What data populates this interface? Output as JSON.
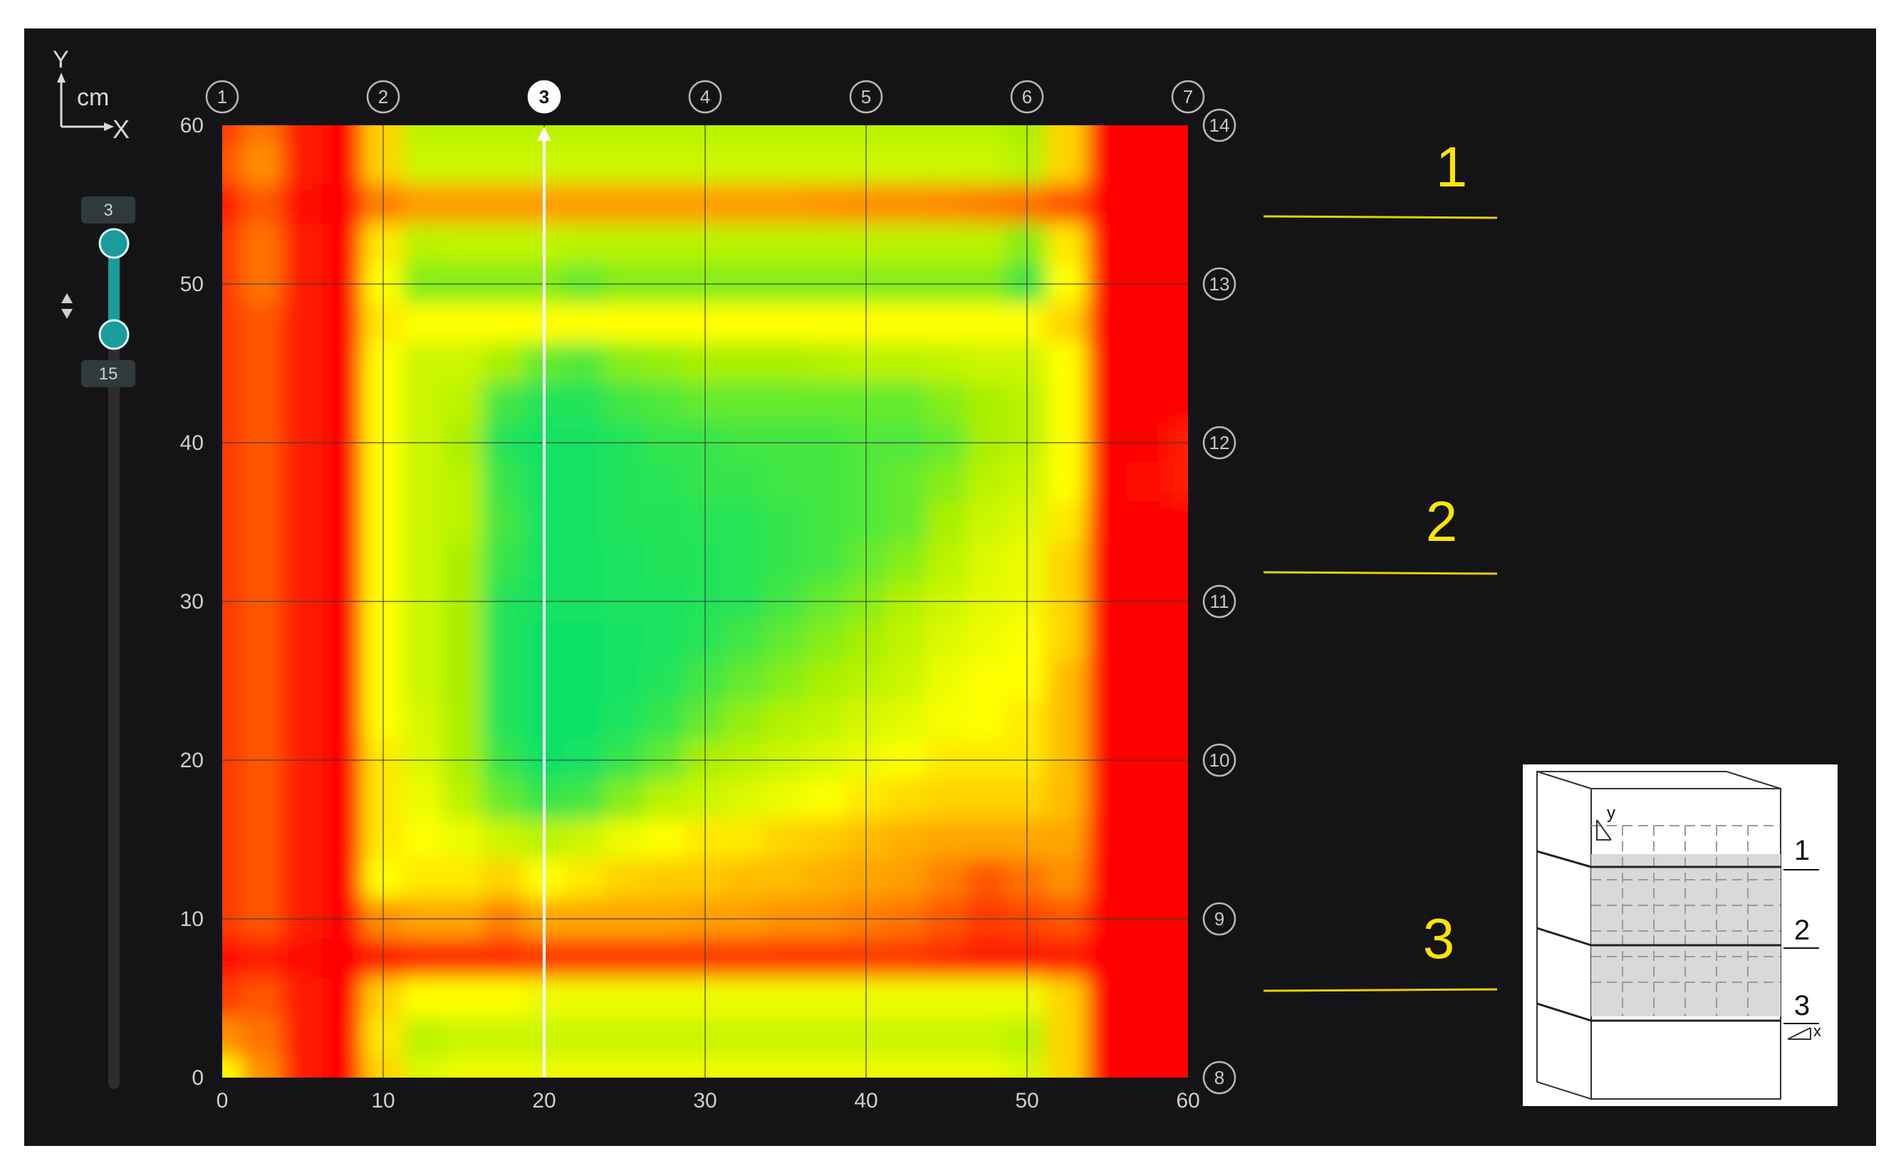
{
  "axis_icon": {
    "y_label": "Y",
    "x_label": "X",
    "unit": "cm"
  },
  "slider": {
    "upper_value": "3",
    "lower_value": "15",
    "icon": "up-down-arrows-icon",
    "accent": "#1a9c9c"
  },
  "selected_column_marker": "3",
  "column_markers": [
    "1",
    "2",
    "3",
    "4",
    "5",
    "6",
    "7"
  ],
  "row_markers": [
    "14",
    "13",
    "12",
    "11",
    "10",
    "9",
    "8"
  ],
  "layer_labels": [
    "1",
    "2",
    "3"
  ],
  "inset": {
    "layer_labels": [
      "1",
      "2",
      "3"
    ],
    "axis_y": "y",
    "axis_x": "x"
  },
  "chart_data": {
    "type": "heatmap",
    "title": "",
    "xlabel": "",
    "ylabel": "",
    "xlim": [
      0,
      60
    ],
    "ylim": [
      0,
      60
    ],
    "x_ticks": [
      0,
      10,
      20,
      30,
      40,
      50,
      60
    ],
    "y_ticks": [
      0,
      10,
      20,
      30,
      40,
      50,
      60
    ],
    "x_tick_labels": [
      "0",
      "10",
      "20",
      "30",
      "40",
      "50",
      "60"
    ],
    "y_tick_labels": [
      "0",
      "10",
      "20",
      "30",
      "40",
      "50",
      "60"
    ],
    "grid": true,
    "colormap": [
      "#00e070",
      "#a8f000",
      "#ffff00",
      "#ff9000",
      "#ff0000"
    ],
    "selected_section_x": 20,
    "x": [
      0,
      2.5,
      5,
      7.5,
      10,
      12.5,
      15,
      17.5,
      20,
      22.5,
      25,
      27.5,
      30,
      32.5,
      35,
      37.5,
      40,
      42.5,
      45,
      47.5,
      50,
      52.5,
      55,
      57.5,
      60
    ],
    "y": [
      60,
      57.5,
      55,
      52.5,
      50,
      47.5,
      45,
      42.5,
      40,
      37.5,
      35,
      32.5,
      30,
      27.5,
      25,
      22.5,
      20,
      17.5,
      15,
      12.5,
      10,
      7.5,
      5,
      2.5,
      0
    ],
    "z": [
      [
        0.9,
        0.8,
        0.95,
        1,
        0.6,
        0.3,
        0.3,
        0.3,
        0.3,
        0.3,
        0.3,
        0.3,
        0.3,
        0.3,
        0.3,
        0.3,
        0.3,
        0.3,
        0.3,
        0.3,
        0.25,
        0.6,
        1,
        1,
        1
      ],
      [
        0.85,
        0.75,
        0.95,
        1,
        0.6,
        0.35,
        0.35,
        0.35,
        0.35,
        0.35,
        0.35,
        0.35,
        0.35,
        0.35,
        0.35,
        0.35,
        0.35,
        0.35,
        0.35,
        0.35,
        0.3,
        0.6,
        1,
        1,
        1
      ],
      [
        0.95,
        0.85,
        0.98,
        1,
        0.78,
        0.72,
        0.72,
        0.72,
        0.72,
        0.72,
        0.72,
        0.72,
        0.72,
        0.72,
        0.72,
        0.74,
        0.75,
        0.75,
        0.76,
        0.78,
        0.8,
        0.85,
        1,
        1,
        1
      ],
      [
        0.9,
        0.8,
        0.95,
        1,
        0.55,
        0.3,
        0.32,
        0.32,
        0.32,
        0.3,
        0.3,
        0.3,
        0.3,
        0.3,
        0.3,
        0.3,
        0.3,
        0.3,
        0.3,
        0.3,
        0.2,
        0.55,
        1,
        1,
        1
      ],
      [
        0.9,
        0.8,
        0.95,
        1,
        0.5,
        0.2,
        0.2,
        0.2,
        0.2,
        0.15,
        0.2,
        0.2,
        0.2,
        0.2,
        0.2,
        0.2,
        0.2,
        0.2,
        0.2,
        0.2,
        0.1,
        0.5,
        1,
        1,
        1
      ],
      [
        0.9,
        0.85,
        0.95,
        1,
        0.55,
        0.5,
        0.5,
        0.5,
        0.5,
        0.5,
        0.5,
        0.5,
        0.5,
        0.5,
        0.5,
        0.5,
        0.5,
        0.5,
        0.5,
        0.5,
        0.5,
        0.6,
        1,
        1,
        1
      ],
      [
        0.9,
        0.85,
        0.95,
        1,
        0.5,
        0.35,
        0.35,
        0.25,
        0.15,
        0.12,
        0.2,
        0.22,
        0.25,
        0.25,
        0.25,
        0.28,
        0.3,
        0.3,
        0.32,
        0.35,
        0.35,
        0.5,
        1,
        1,
        1
      ],
      [
        0.9,
        0.85,
        0.95,
        1,
        0.5,
        0.35,
        0.3,
        0.1,
        0.05,
        0.05,
        0.1,
        0.12,
        0.15,
        0.15,
        0.15,
        0.15,
        0.15,
        0.15,
        0.2,
        0.25,
        0.3,
        0.5,
        1,
        1,
        1
      ],
      [
        0.9,
        0.85,
        0.95,
        1,
        0.5,
        0.35,
        0.25,
        0.05,
        0.03,
        0.03,
        0.05,
        0.08,
        0.08,
        0.1,
        0.1,
        0.1,
        0.12,
        0.12,
        0.15,
        0.25,
        0.3,
        0.5,
        1,
        1,
        0.95
      ],
      [
        0.9,
        0.85,
        0.95,
        1,
        0.5,
        0.35,
        0.3,
        0.08,
        0.03,
        0.03,
        0.05,
        0.06,
        0.08,
        0.08,
        0.1,
        0.1,
        0.12,
        0.15,
        0.2,
        0.3,
        0.35,
        0.5,
        1,
        0.98,
        0.95
      ],
      [
        0.9,
        0.85,
        0.95,
        1,
        0.5,
        0.35,
        0.3,
        0.1,
        0.03,
        0.03,
        0.05,
        0.05,
        0.06,
        0.06,
        0.08,
        0.1,
        0.12,
        0.15,
        0.25,
        0.35,
        0.4,
        0.55,
        1,
        1,
        1
      ],
      [
        0.9,
        0.85,
        0.95,
        1,
        0.5,
        0.35,
        0.25,
        0.08,
        0.03,
        0.03,
        0.04,
        0.05,
        0.05,
        0.06,
        0.08,
        0.1,
        0.15,
        0.2,
        0.3,
        0.4,
        0.45,
        0.6,
        1,
        1,
        1
      ],
      [
        0.9,
        0.85,
        0.95,
        1,
        0.5,
        0.35,
        0.25,
        0.05,
        0.03,
        0.03,
        0.04,
        0.04,
        0.05,
        0.06,
        0.1,
        0.15,
        0.2,
        0.28,
        0.35,
        0.42,
        0.45,
        0.6,
        1,
        1,
        1
      ],
      [
        0.9,
        0.85,
        0.95,
        1,
        0.5,
        0.35,
        0.25,
        0.05,
        0.02,
        0.02,
        0.03,
        0.04,
        0.06,
        0.1,
        0.15,
        0.2,
        0.25,
        0.32,
        0.4,
        0.45,
        0.5,
        0.6,
        1,
        1,
        1
      ],
      [
        0.9,
        0.85,
        0.95,
        1,
        0.5,
        0.35,
        0.25,
        0.05,
        0.02,
        0.02,
        0.03,
        0.05,
        0.1,
        0.15,
        0.2,
        0.25,
        0.3,
        0.35,
        0.45,
        0.5,
        0.5,
        0.65,
        1,
        1,
        1
      ],
      [
        0.9,
        0.85,
        0.95,
        1,
        0.5,
        0.38,
        0.25,
        0.05,
        0.02,
        0.02,
        0.04,
        0.08,
        0.15,
        0.22,
        0.28,
        0.32,
        0.38,
        0.42,
        0.48,
        0.5,
        0.55,
        0.65,
        1,
        1,
        1
      ],
      [
        0.9,
        0.85,
        0.95,
        1,
        0.55,
        0.4,
        0.25,
        0.08,
        0.02,
        0.03,
        0.08,
        0.15,
        0.25,
        0.3,
        0.35,
        0.4,
        0.45,
        0.5,
        0.55,
        0.55,
        0.55,
        0.65,
        1,
        1,
        1
      ],
      [
        0.9,
        0.85,
        0.95,
        1,
        0.55,
        0.45,
        0.3,
        0.15,
        0.08,
        0.1,
        0.2,
        0.3,
        0.35,
        0.4,
        0.45,
        0.5,
        0.55,
        0.58,
        0.6,
        0.6,
        0.6,
        0.65,
        1,
        1,
        1
      ],
      [
        0.9,
        0.85,
        0.95,
        1,
        0.55,
        0.5,
        0.45,
        0.35,
        0.3,
        0.35,
        0.45,
        0.5,
        0.55,
        0.55,
        0.6,
        0.62,
        0.65,
        0.68,
        0.7,
        0.7,
        0.7,
        0.7,
        1,
        1,
        1
      ],
      [
        0.9,
        0.85,
        0.95,
        1,
        0.5,
        0.55,
        0.55,
        0.6,
        0.5,
        0.55,
        0.6,
        0.62,
        0.62,
        0.65,
        0.65,
        0.68,
        0.7,
        0.72,
        0.78,
        0.85,
        0.8,
        0.75,
        1,
        1,
        1
      ],
      [
        0.9,
        0.85,
        0.95,
        1,
        0.75,
        0.7,
        0.7,
        0.78,
        0.7,
        0.7,
        0.7,
        0.7,
        0.72,
        0.72,
        0.75,
        0.75,
        0.78,
        0.8,
        0.85,
        0.9,
        0.88,
        0.85,
        1,
        1,
        1
      ],
      [
        0.98,
        0.95,
        0.98,
        1,
        0.95,
        0.92,
        0.92,
        0.92,
        0.9,
        0.9,
        0.9,
        0.9,
        0.9,
        0.9,
        0.9,
        0.9,
        0.9,
        0.9,
        0.92,
        0.95,
        0.95,
        0.95,
        1,
        1,
        1
      ],
      [
        0.9,
        0.85,
        0.95,
        1,
        0.6,
        0.5,
        0.5,
        0.5,
        0.45,
        0.45,
        0.45,
        0.45,
        0.45,
        0.45,
        0.45,
        0.45,
        0.45,
        0.45,
        0.45,
        0.45,
        0.45,
        0.6,
        1,
        1,
        1
      ],
      [
        0.75,
        0.8,
        0.95,
        1,
        0.55,
        0.3,
        0.35,
        0.35,
        0.35,
        0.35,
        0.35,
        0.35,
        0.35,
        0.35,
        0.35,
        0.35,
        0.35,
        0.35,
        0.35,
        0.35,
        0.3,
        0.6,
        1,
        1,
        1
      ],
      [
        0.5,
        0.75,
        0.95,
        1,
        0.6,
        0.4,
        0.45,
        0.45,
        0.45,
        0.45,
        0.45,
        0.45,
        0.45,
        0.45,
        0.45,
        0.45,
        0.45,
        0.45,
        0.45,
        0.45,
        0.4,
        0.6,
        1,
        1,
        1
      ]
    ]
  }
}
